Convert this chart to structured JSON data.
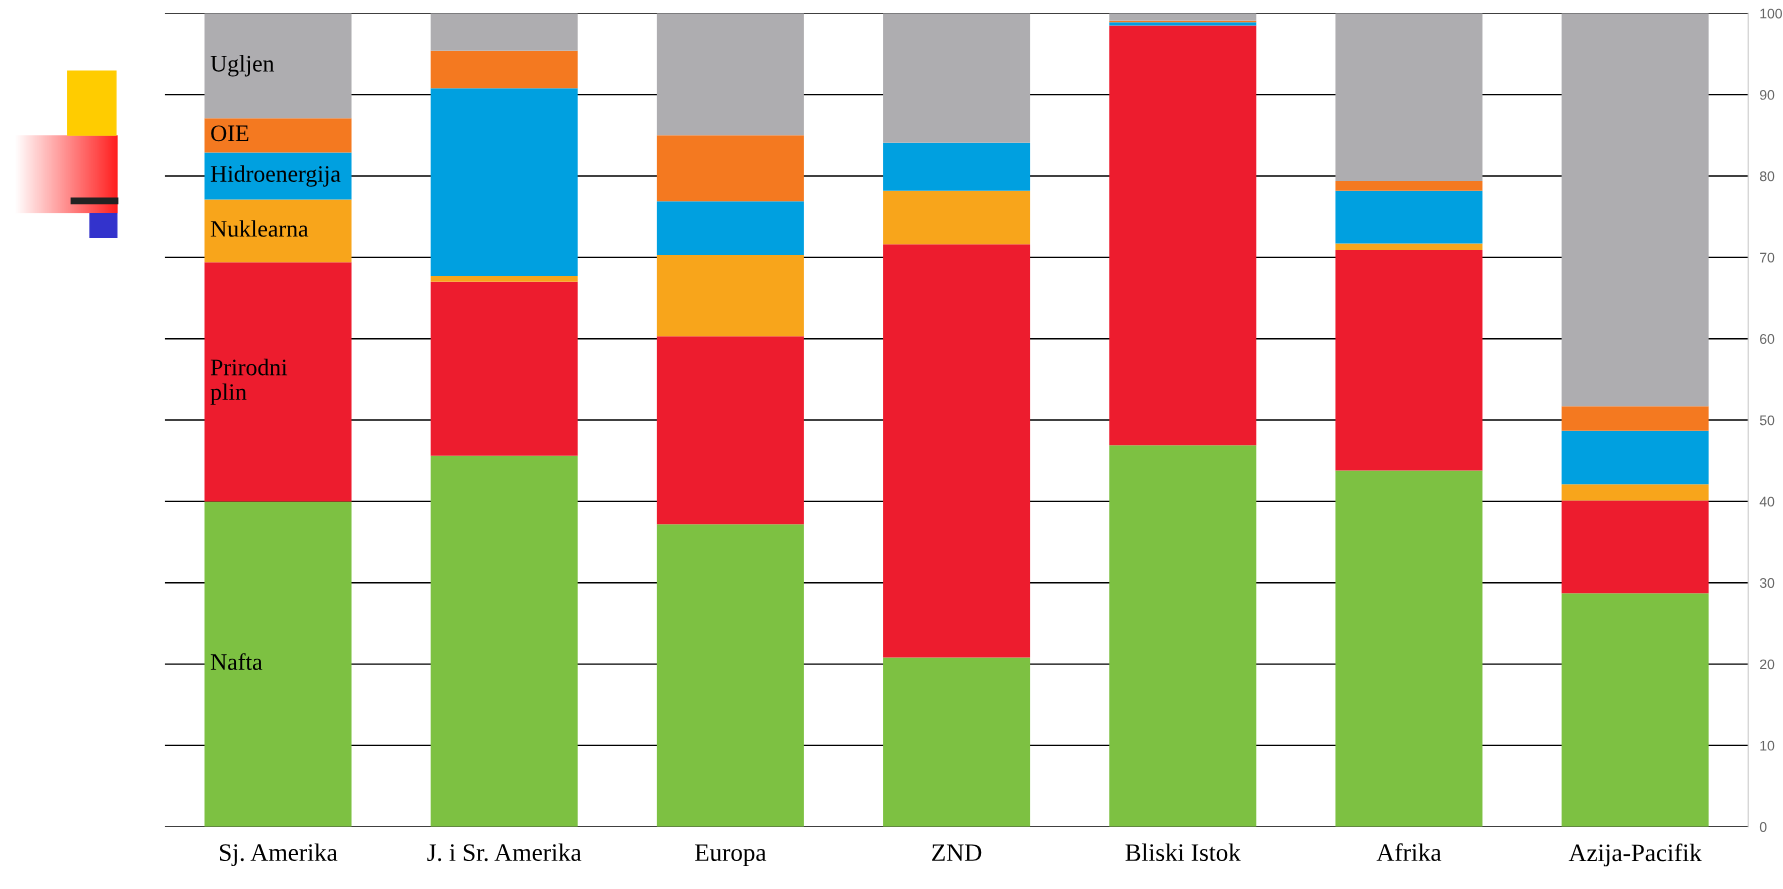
{
  "chart_data": {
    "type": "bar",
    "stacked": true,
    "categories": [
      "Sj. Amerika",
      "J. i Sr. Amerika",
      "Europa",
      "ZND",
      "Bliski Istok",
      "Afrika",
      "Azija-Pacifik"
    ],
    "series": [
      {
        "name": "Nafta",
        "color": "#7dc142",
        "values": [
          40.0,
          45.6,
          37.2,
          20.8,
          46.9,
          43.8,
          28.7
        ]
      },
      {
        "name": "Prirodni\nplin",
        "color": "#ed1c2e",
        "values": [
          29.4,
          21.4,
          23.1,
          50.8,
          51.6,
          27.1,
          11.4
        ]
      },
      {
        "name": "Nuklearna",
        "color": "#f8a51b",
        "values": [
          7.7,
          0.7,
          10.0,
          6.6,
          0,
          0.8,
          2.0
        ]
      },
      {
        "name": "Hidroenergija",
        "color": "#00a0e0",
        "values": [
          5.8,
          23.1,
          6.6,
          5.9,
          0.4,
          6.5,
          6.6
        ]
      },
      {
        "name": "OIE",
        "color": "#f47920",
        "values": [
          4.2,
          4.6,
          8.1,
          0,
          0.2,
          1.2,
          3.0
        ]
      },
      {
        "name": "Ugljen",
        "color": "#aeadb0",
        "values": [
          12.9,
          4.6,
          15.0,
          15.9,
          0.9,
          20.6,
          48.3
        ]
      }
    ],
    "ylim": [
      0,
      100
    ],
    "yticks": [
      0,
      10,
      20,
      30,
      40,
      50,
      60,
      70,
      80,
      90,
      100
    ],
    "grid": "y",
    "legend": false
  }
}
